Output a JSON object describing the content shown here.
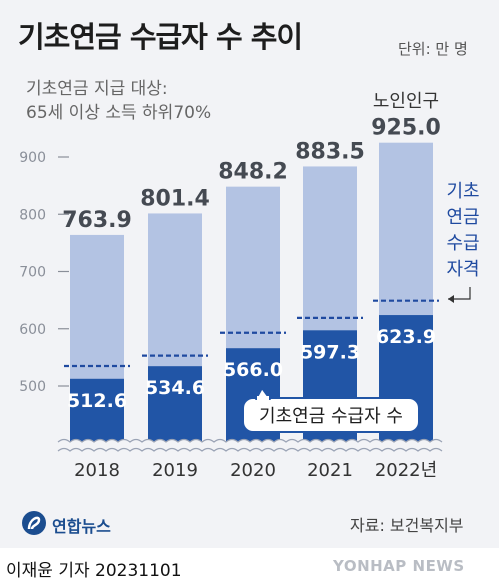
{
  "header": {
    "title": "기초연금 수급자 수 추이",
    "unit": "단위: 만 명",
    "subtitle_line1": "기초연금 지급 대상:",
    "subtitle_line2": "65세 이상 소득 하위70%"
  },
  "chart_data": {
    "type": "bar",
    "categories": [
      "2018",
      "2019",
      "2020",
      "2021",
      "2022년"
    ],
    "ylim": [
      400,
      950
    ],
    "yticks": [
      "900",
      "800",
      "700",
      "600",
      "500"
    ],
    "series": [
      {
        "name": "노인인구",
        "values": [
          763.9,
          801.4,
          848.2,
          883.5,
          925.0
        ]
      },
      {
        "name": "기초연금 수급자 수",
        "values": [
          512.6,
          534.6,
          566.0,
          597.3,
          623.9
        ]
      }
    ],
    "eligibility_threshold": [
      535,
      553,
      593,
      619,
      649
    ],
    "value_labels_top": [
      "763.9",
      "801.4",
      "848.2",
      "883.5",
      "925.0"
    ],
    "value_labels_bottom": [
      "512.6",
      "534.6",
      "566.0",
      "597.3",
      "623.9"
    ],
    "annotations": {
      "elderly_population": "노인인구",
      "eligibility_lines": [
        "기초",
        "연금",
        "수급",
        "자격"
      ],
      "recipients_box": "기초연금 수급자 수"
    },
    "colors": {
      "elderly_bar": "#b3c3e3",
      "recipient_bar": "#2155a6",
      "threshold_line": "#1f4aa0",
      "annotation": "#1f4aa0"
    }
  },
  "footer": {
    "logo_text": "연합뉴스",
    "source": "자료: 보건복지부",
    "byline": "이재윤 기자  20231101",
    "watermark": "YONHAP NEWS"
  }
}
